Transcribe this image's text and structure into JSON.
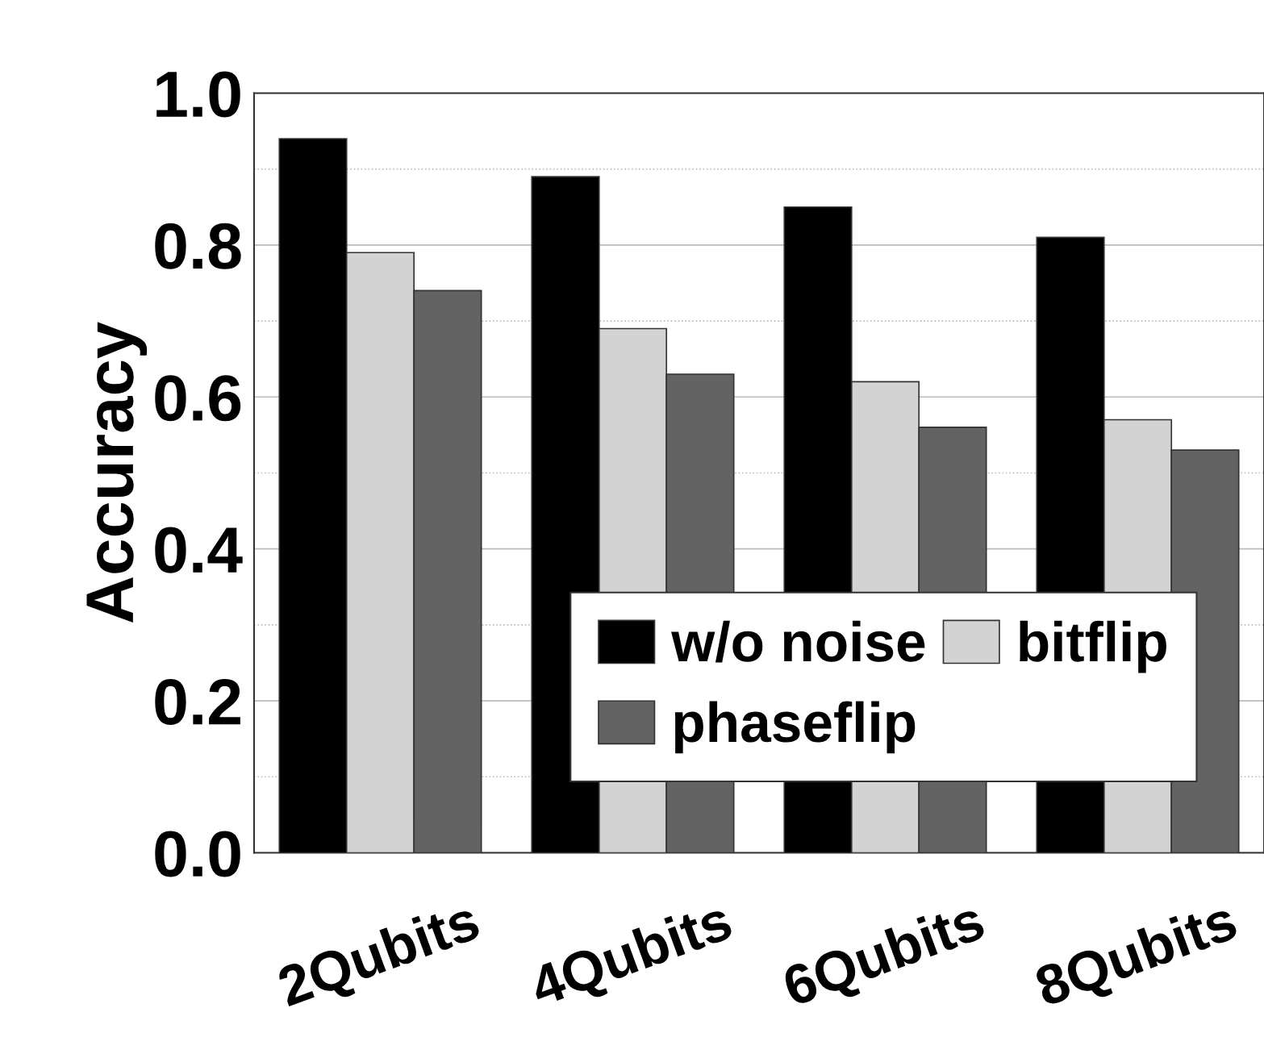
{
  "chart_data": {
    "type": "bar",
    "ylabel": "Accuracy",
    "categories": [
      "2Qubits",
      "4Qubits",
      "6Qubits",
      "8Qubits"
    ],
    "series": [
      {
        "name": "w/o noise",
        "color": "#000000",
        "values": [
          0.94,
          0.89,
          0.85,
          0.81
        ]
      },
      {
        "name": "bitflip",
        "color": "#d3d3d3",
        "values": [
          0.79,
          0.69,
          0.62,
          0.57
        ]
      },
      {
        "name": "phaseflip",
        "color": "#636363",
        "values": [
          0.74,
          0.63,
          0.56,
          0.53
        ]
      }
    ],
    "ylim": [
      0,
      1.0
    ],
    "yticks": [
      {
        "value": 0,
        "label": "0.0"
      },
      {
        "value": 0.1,
        "label": null
      },
      {
        "value": 0.2,
        "label": "0.2"
      },
      {
        "value": 0.3,
        "label": null
      },
      0.4,
      {
        "value": 0.5,
        "label": null
      },
      {
        "value": 0.6,
        "label": "0.6"
      },
      {
        "value": 0.7,
        "label": null
      },
      0.8,
      {
        "value": 0.9,
        "label": null
      },
      {
        "value": 1,
        "label": "1.0"
      }
    ],
    "grid": "y",
    "legend": "bottom right"
  }
}
